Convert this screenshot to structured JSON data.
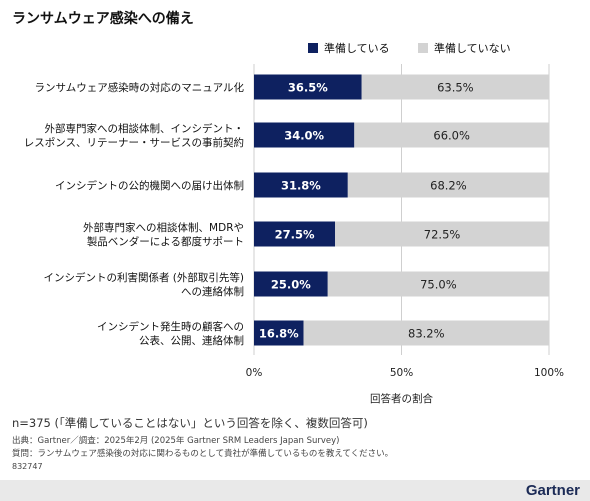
{
  "page_title": "ランサムウェア感染への備え",
  "legend": [
    {
      "label": "準備している",
      "color": "#0e2160"
    },
    {
      "label": "準備していない",
      "color": "#d3d3d3"
    }
  ],
  "chart_data": {
    "type": "bar",
    "orientation": "horizontal",
    "stacked": true,
    "title": "",
    "categories": [
      [
        "ランサムウェア感染時の対応のマニュアル化"
      ],
      [
        "外部専門家への相談体制、インシデント・",
        "レスポンス、リテーナー・サービスの事前契約"
      ],
      [
        "インシデントの公的機関への届け出体制"
      ],
      [
        "外部専門家への相談体制、MDRや",
        "製品ベンダーによる都度サポート"
      ],
      [
        "インシデントの利害関係者 (外部取引先等)",
        "への連絡体制"
      ],
      [
        "インシデント発生時の顧客への",
        "公表、公開、連絡体制"
      ]
    ],
    "series": [
      {
        "name": "準備している",
        "color": "#0e2160",
        "values": [
          36.5,
          34.0,
          31.8,
          27.5,
          25.0,
          16.8
        ],
        "labels": [
          "36.5%",
          "34.0%",
          "31.8%",
          "27.5%",
          "25.0%",
          "16.8%"
        ]
      },
      {
        "name": "準備していない",
        "color": "#d3d3d3",
        "values": [
          63.5,
          66.0,
          68.2,
          72.5,
          75.0,
          83.2
        ],
        "labels": [
          "63.5%",
          "66.0%",
          "68.2%",
          "72.5%",
          "75.0%",
          "83.2%"
        ]
      }
    ],
    "xlim": [
      0,
      100
    ],
    "xticks": [
      "0%",
      "50%",
      "100%"
    ],
    "xlabel": "回答者の割合",
    "grid": true,
    "legend_position": "top-right"
  },
  "notes": {
    "sample": "n=375 (「準備していることはない」という回答を除く、複数回答可)",
    "source": "出典：Gartner／調査：2025年2月 (2025年 Gartner SRM Leaders Japan Survey)",
    "question": "質問：ランサムウェア感染後の対応に関わるものとして貴社が準備しているものを教えてください。",
    "doc_id": "832747"
  },
  "brand": "Gartner"
}
